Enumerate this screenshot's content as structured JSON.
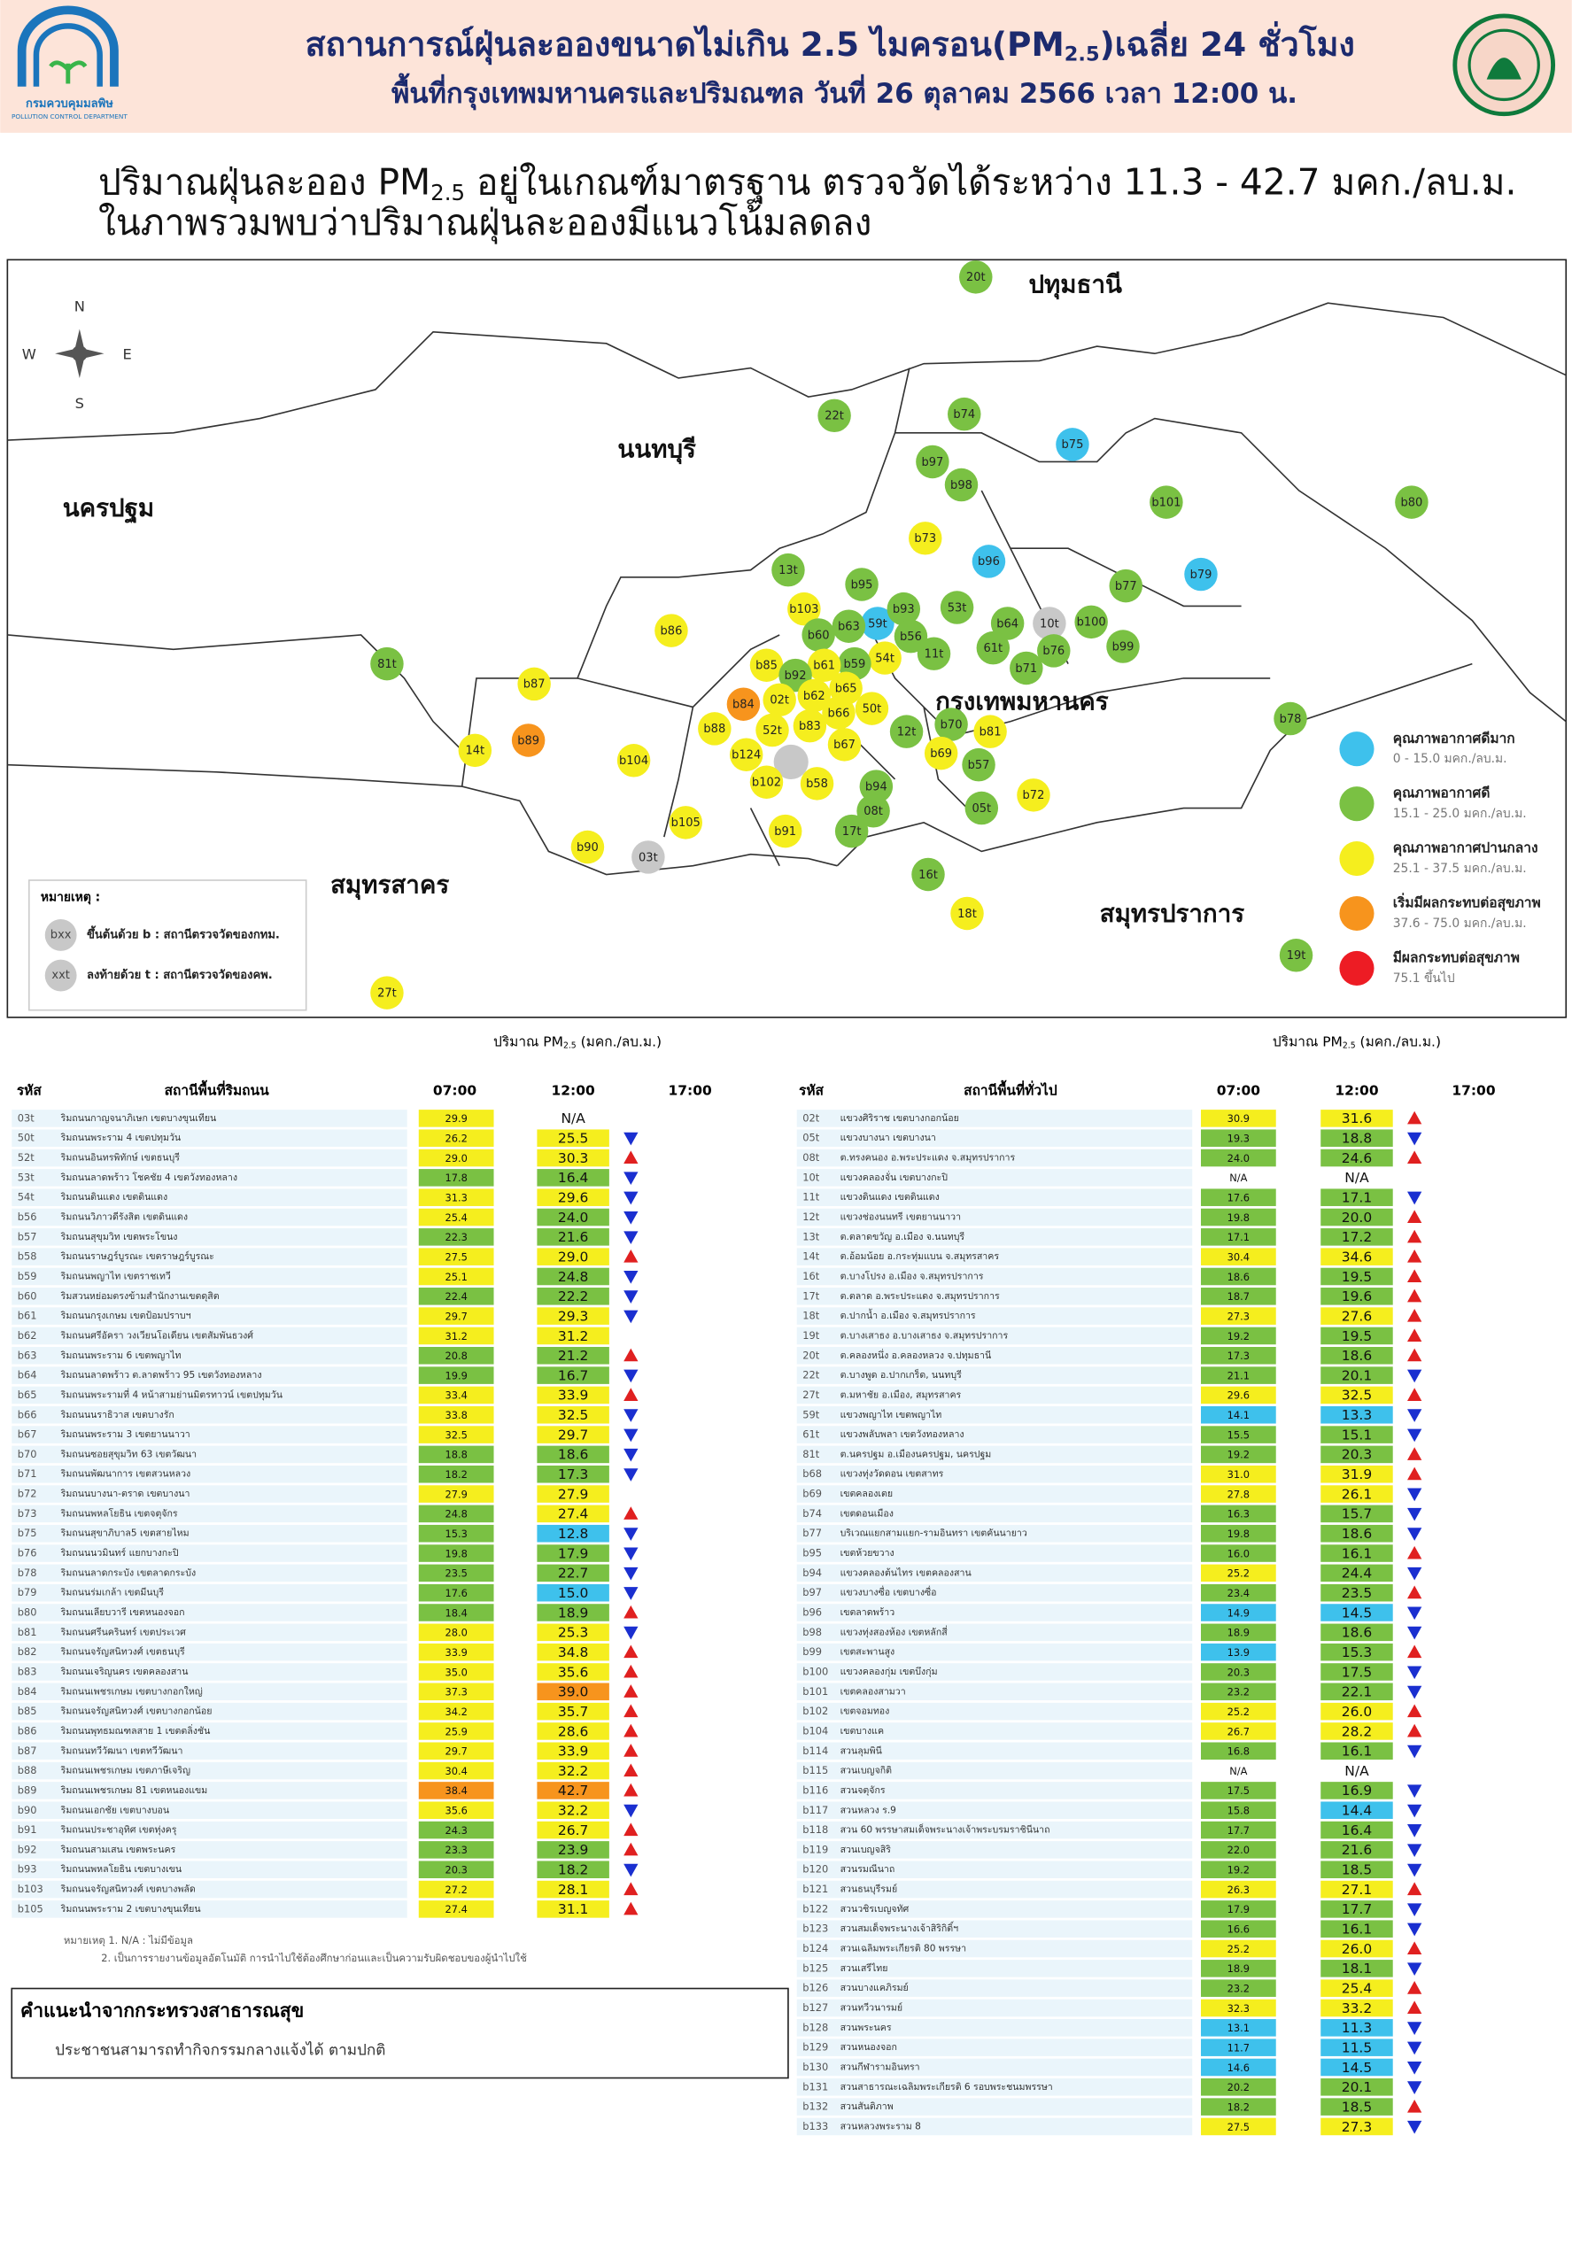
{
  "header": {
    "title_pre": "สถานการณ์ฝุ่นละอองขนาดไม่เกิน 2.5 ไมครอน(PM",
    "title_sub": "2.5",
    "title_post": ")เฉลี่ย 24 ชั่วโมง",
    "subtitle": "พื้นที่กรุงเทพมหานครและปริมณฑล วันที่ 26 ตุลาคม 2566 เวลา 12:00 น.",
    "logo_name": "กรมควบคุมมลพิษ",
    "logo_name_en": "POLLUTION CONTROL DEPARTMENT"
  },
  "summary": {
    "line1_pre": "ปริมาณฝุ่นละออง PM",
    "line1_sub": "2.5",
    "line1_post": " อยู่ในเกณฑ์มาตรฐาน ตรวจวัดได้ระหว่าง 11.3 - 42.7 มคก./ลบ.ม.",
    "line2": "ในภาพรวมพบว่าปริมาณฝุ่นละอองมีแนวโน้มลดลง"
  },
  "map": {
    "compass": {
      "n": "N",
      "s": "S",
      "e": "E",
      "w": "W"
    },
    "regions": [
      "ปทุมธานี",
      "นนทบุรี",
      "นครปฐม",
      "กรุงเทพมหานคร",
      "สมุทรสาคร",
      "สมุทรปราการ"
    ],
    "stations": [
      {
        "label": "20t",
        "color": "#7ac143"
      },
      {
        "label": "22t",
        "color": "#7ac143"
      },
      {
        "label": "b74",
        "color": "#7ac143"
      },
      {
        "label": "b75",
        "color": "#3ec1ec"
      },
      {
        "label": "b97",
        "color": "#7ac143"
      },
      {
        "label": "b98",
        "color": "#7ac143"
      },
      {
        "label": "b101",
        "color": "#7ac143"
      },
      {
        "label": "b80",
        "color": "#7ac143"
      },
      {
        "label": "b73",
        "color": "#f5ee1e"
      },
      {
        "label": "b96",
        "color": "#3ec1ec"
      },
      {
        "label": "b79",
        "color": "#3ec1ec"
      },
      {
        "label": "13t",
        "color": "#7ac143"
      },
      {
        "label": "b95",
        "color": "#7ac143"
      },
      {
        "label": "b77",
        "color": "#7ac143"
      },
      {
        "label": "b103",
        "color": "#f5ee1e"
      },
      {
        "label": "59t",
        "color": "#3ec1ec"
      },
      {
        "label": "b63",
        "color": "#7ac143"
      },
      {
        "label": "b93",
        "color": "#7ac143"
      },
      {
        "label": "53t",
        "color": "#7ac143"
      },
      {
        "label": "10t",
        "color": "#c8c8c8"
      },
      {
        "label": "b100",
        "color": "#7ac143"
      },
      {
        "label": "b64",
        "color": "#7ac143"
      },
      {
        "label": "b60",
        "color": "#7ac143"
      },
      {
        "label": "b56",
        "color": "#7ac143"
      },
      {
        "label": "61t",
        "color": "#7ac143"
      },
      {
        "label": "b76",
        "color": "#7ac143"
      },
      {
        "label": "b99",
        "color": "#7ac143"
      },
      {
        "label": "b86",
        "color": "#f5ee1e"
      },
      {
        "label": "81t",
        "color": "#7ac143"
      },
      {
        "label": "11t",
        "color": "#7ac143"
      },
      {
        "label": "54t",
        "color": "#f5ee1e"
      },
      {
        "label": "b59",
        "color": "#7ac143"
      },
      {
        "label": "b61",
        "color": "#f5ee1e"
      },
      {
        "label": "b71",
        "color": "#7ac143"
      },
      {
        "label": "b85",
        "color": "#f5ee1e"
      },
      {
        "label": "b92",
        "color": "#7ac143"
      },
      {
        "label": "b87",
        "color": "#f5ee1e"
      },
      {
        "label": "b62",
        "color": "#f5ee1e"
      },
      {
        "label": "b65",
        "color": "#f5ee1e"
      },
      {
        "label": "02t",
        "color": "#f5ee1e"
      },
      {
        "label": "b84",
        "color": "#f7941d"
      },
      {
        "label": "50t",
        "color": "#f5ee1e"
      },
      {
        "label": "b66",
        "color": "#f5ee1e"
      },
      {
        "label": "b78",
        "color": "#7ac143"
      },
      {
        "label": "b88",
        "color": "#f5ee1e"
      },
      {
        "label": "52t",
        "color": "#f5ee1e"
      },
      {
        "label": "b83",
        "color": "#f5ee1e"
      },
      {
        "label": "b70",
        "color": "#7ac143"
      },
      {
        "label": "b81",
        "color": "#f5ee1e"
      },
      {
        "label": "12t",
        "color": "#7ac143"
      },
      {
        "label": "b67",
        "color": "#f5ee1e"
      },
      {
        "label": "b124",
        "color": "#f5ee1e"
      },
      {
        "label": "14t",
        "color": "#f5ee1e"
      },
      {
        "label": "b89",
        "color": "#f7941d"
      },
      {
        "label": "b69",
        "color": "#f5ee1e"
      },
      {
        "label": "b57",
        "color": "#7ac143"
      },
      {
        "label": "b104",
        "color": "#f5ee1e"
      },
      {
        "label": "b102",
        "color": "#f5ee1e"
      },
      {
        "label": "b58",
        "color": "#f5ee1e"
      },
      {
        "label": "b94",
        "color": "#7ac143"
      },
      {
        "label": "b72",
        "color": "#f5ee1e"
      },
      {
        "label": "08t",
        "color": "#7ac143"
      },
      {
        "label": "05t",
        "color": "#7ac143"
      },
      {
        "label": "b105",
        "color": "#f5ee1e"
      },
      {
        "label": "b91",
        "color": "#f5ee1e"
      },
      {
        "label": "17t",
        "color": "#7ac143"
      },
      {
        "label": "b90",
        "color": "#f5ee1e"
      },
      {
        "label": "03t",
        "color": "#c8c8c8"
      },
      {
        "label": "16t",
        "color": "#7ac143"
      },
      {
        "label": "18t",
        "color": "#f5ee1e"
      },
      {
        "label": "19t",
        "color": "#7ac143"
      },
      {
        "label": "27t",
        "color": "#f5ee1e"
      }
    ],
    "legend": [
      {
        "label": "คุณภาพอากาศดีมาก",
        "range": "0 - 15.0 มคก./ลบ.ม.",
        "color": "#3ec1ec"
      },
      {
        "label": "คุณภาพอากาศดี",
        "range": "15.1 - 25.0 มคก./ลบ.ม.",
        "color": "#7ac143"
      },
      {
        "label": "คุณภาพอากาศปานกลาง",
        "range": "25.1 - 37.5 มคก./ลบ.ม.",
        "color": "#f5ee1e"
      },
      {
        "label": "เริ่มมีผลกระทบต่อสุขภาพ",
        "range": "37.6 - 75.0 มคก./ลบ.ม.",
        "color": "#f7941d"
      },
      {
        "label": "มีผลกระทบต่อสุขภาพ",
        "range": "75.1 ขึ้นไป",
        "color": "#ed1c24"
      }
    ],
    "note": {
      "title": "หมายเหตุ :",
      "items": [
        {
          "symbol": "bxx",
          "text": "ขึ้นต้นด้วย b : สถานีตรวจวัดของกทม."
        },
        {
          "symbol": "xxt",
          "text": "ลงท้ายด้วย t : สถานีตรวจวัดของคพ."
        }
      ]
    }
  },
  "tables": [
    {
      "heading_pre": "ปริมาณ PM",
      "heading_sub": "2.5",
      "heading_post": " (มคก./ลบ.ม.)",
      "columns": [
        "รหัส",
        "สถานีพื้นที่ริมถนน",
        "07:00",
        "12:00",
        "17:00"
      ],
      "rows": [
        [
          "03t",
          "ริมถนนกาญจนาภิเษก เขตบางขุนเทียน",
          "29.9",
          "N/A"
        ],
        [
          "50t",
          "ริมถนนพระราม 4 เขตปทุมวัน",
          "26.2",
          "25.5"
        ],
        [
          "52t",
          "ริมถนนอินทรพิทักษ์ เขตธนบุรี",
          "29.0",
          "30.3"
        ],
        [
          "53t",
          "ริมถนนลาดพร้าว โชคชัย 4 เขตวังทองหลาง",
          "17.8",
          "16.4"
        ],
        [
          "54t",
          "ริมถนนดินแดง เขตดินแดง",
          "31.3",
          "29.6"
        ],
        [
          "b56",
          "ริมถนนวิภาวดีรังสิต เขตดินแดง",
          "25.4",
          "24.0"
        ],
        [
          "b57",
          "ริมถนนสุขุมวิท เขตพระโขนง",
          "22.3",
          "21.6"
        ],
        [
          "b58",
          "ริมถนนราษฎร์บูรณะ เขตราษฎร์บูรณะ",
          "27.5",
          "29.0"
        ],
        [
          "b59",
          "ริมถนนพญาไท เขตราชเทวี",
          "25.1",
          "24.8"
        ],
        [
          "b60",
          "ริมสวนหย่อมตรงข้ามสำนักงานเขตดุสิต",
          "22.4",
          "22.2"
        ],
        [
          "b61",
          "ริมถนนกรุงเกษม เขตป้อมปราบฯ",
          "29.7",
          "29.3"
        ],
        [
          "b62",
          "ริมถนนศรีอัครา วงเวียนโอเดียน เขตสัมพันธวงศ์",
          "31.2",
          "31.2"
        ],
        [
          "b63",
          "ริมถนนพระราม 6 เขตพญาไท",
          "20.8",
          "21.2"
        ],
        [
          "b64",
          "ริมถนนลาดพร้าว ต.ลาดพร้าว 95 เขตวังทองหลาง",
          "19.9",
          "16.7"
        ],
        [
          "b65",
          "ริมถนนพระรามที่ 4 หน้าสามย่านมิตรทาวน์ เขตปทุมวัน",
          "33.4",
          "33.9"
        ],
        [
          "b66",
          "ริมถนนนราธิวาส เขตบางรัก",
          "33.8",
          "32.5"
        ],
        [
          "b67",
          "ริมถนนพระราม 3 เขตยานนาวา",
          "32.5",
          "29.7"
        ],
        [
          "b70",
          "ริมถนนซอยสุขุมวิท 63 เขตวัฒนา",
          "18.8",
          "18.6"
        ],
        [
          "b71",
          "ริมถนนพัฒนาการ เขตสวนหลวง",
          "18.2",
          "17.3"
        ],
        [
          "b72",
          "ริมถนนบางนา-ตราด เขตบางนา",
          "27.9",
          "27.9"
        ],
        [
          "b73",
          "ริมถนนพหลโยธิน เขตจตุจักร",
          "24.8",
          "27.4"
        ],
        [
          "b75",
          "ริมถนนสุขาภิบาล5 เขตสายไหม",
          "15.3",
          "12.8"
        ],
        [
          "b76",
          "ริมถนนนวมินทร์ แยกบางกะปิ",
          "19.8",
          "17.9"
        ],
        [
          "b78",
          "ริมถนนลาดกระบัง เขตลาดกระบัง",
          "23.5",
          "22.7"
        ],
        [
          "b79",
          "ริมถนนร่มเกล้า เขตมีนบุรี",
          "17.6",
          "15.0"
        ],
        [
          "b80",
          "ริมถนนเลียบวารี เขตหนองจอก",
          "18.4",
          "18.9"
        ],
        [
          "b81",
          "ริมถนนศรีนครินทร์ เขตประเวศ",
          "28.0",
          "25.3"
        ],
        [
          "b82",
          "ริมถนนจรัญสนิทวงศ์ เขตธนบุรี",
          "33.9",
          "34.8"
        ],
        [
          "b83",
          "ริมถนนเจริญนคร เขตคลองสาน",
          "35.0",
          "35.6"
        ],
        [
          "b84",
          "ริมถนนเพชรเกษม เขตบางกอกใหญ่",
          "37.3",
          "39.0"
        ],
        [
          "b85",
          "ริมถนนจรัญสนิทวงศ์ เขตบางกอกน้อย",
          "34.2",
          "35.7"
        ],
        [
          "b86",
          "ริมถนนพุทธมณฑลสาย 1 เขตตลิ่งชัน",
          "25.9",
          "28.6"
        ],
        [
          "b87",
          "ริมถนนทวีวัฒนา เขตทวีวัฒนา",
          "29.7",
          "33.9"
        ],
        [
          "b88",
          "ริมถนนเพชรเกษม เขตภาษีเจริญ",
          "30.4",
          "32.2"
        ],
        [
          "b89",
          "ริมถนนเพชรเกษม 81 เขตหนองแขม",
          "38.4",
          "42.7"
        ],
        [
          "b90",
          "ริมถนนเอกชัย เขตบางบอน",
          "35.6",
          "32.2"
        ],
        [
          "b91",
          "ริมถนนประชาอุทิศ เขตทุ่งครุ",
          "24.3",
          "26.7"
        ],
        [
          "b92",
          "ริมถนนสามเสน เขตพระนคร",
          "23.3",
          "23.9"
        ],
        [
          "b93",
          "ริมถนนพหลโยธิน เขตบางเขน",
          "20.3",
          "18.2"
        ],
        [
          "b103",
          "ริมถนนจรัญสนิทวงศ์ เขตบางพลัด",
          "27.2",
          "28.1"
        ],
        [
          "b105",
          "ริมถนนพระราม 2 เขตบางขุนเทียน",
          "27.4",
          "31.1"
        ]
      ]
    },
    {
      "heading_pre": "ปริมาณ PM",
      "heading_sub": "2.5",
      "heading_post": " (มคก./ลบ.ม.)",
      "columns": [
        "รหัส",
        "สถานีพื้นที่ทั่วไป",
        "07:00",
        "12:00",
        "17:00"
      ],
      "rows": [
        [
          "02t",
          "แขวงศิริราช เขตบางกอกน้อย",
          "30.9",
          "31.6"
        ],
        [
          "05t",
          "แขวงบางนา เขตบางนา",
          "19.3",
          "18.8"
        ],
        [
          "08t",
          "ต.ทรงคนอง อ.พระประแดง จ.สมุทรปราการ",
          "24.0",
          "24.6"
        ],
        [
          "10t",
          "แขวงคลองจั่น เขตบางกะปิ",
          "N/A",
          "N/A"
        ],
        [
          "11t",
          "แขวงดินแดง เขตดินแดง",
          "17.6",
          "17.1"
        ],
        [
          "12t",
          "แขวงช่องนนทรี เขตยานนาวา",
          "19.8",
          "20.0"
        ],
        [
          "13t",
          "ต.ตลาดขวัญ อ.เมือง จ.นนทบุรี",
          "17.1",
          "17.2"
        ],
        [
          "14t",
          "ต.อ้อมน้อย อ.กระทุ่มแบน จ.สมุทรสาคร",
          "30.4",
          "34.6"
        ],
        [
          "16t",
          "ต.บางโปรง อ.เมือง จ.สมุทรปราการ",
          "18.6",
          "19.5"
        ],
        [
          "17t",
          "ต.ตลาด อ.พระประแดง จ.สมุทรปราการ",
          "18.7",
          "19.6"
        ],
        [
          "18t",
          "ต.ปากน้ำ อ.เมือง จ.สมุทรปราการ",
          "27.3",
          "27.6"
        ],
        [
          "19t",
          "ต.บางเสาธง อ.บางเสาธง จ.สมุทรปราการ",
          "19.2",
          "19.5"
        ],
        [
          "20t",
          "ต.คลองหนึ่ง อ.คลองหลวง จ.ปทุมธานี",
          "17.3",
          "18.6"
        ],
        [
          "22t",
          "ต.บางพูด อ.ปากเกร็ด, นนทบุรี",
          "21.1",
          "20.1"
        ],
        [
          "27t",
          "ต.มหาชัย อ.เมือง, สมุทรสาคร",
          "29.6",
          "32.5"
        ],
        [
          "59t",
          "แขวงพญาไท เขตพญาไท",
          "14.1",
          "13.3"
        ],
        [
          "61t",
          "แขวงพลับพลา เขตวังทองหลาง",
          "15.5",
          "15.1"
        ],
        [
          "81t",
          "ต.นครปฐม อ.เมืองนครปฐม, นครปฐม",
          "19.2",
          "20.3"
        ],
        [
          "b68",
          "แขวงทุ่งวัดดอน เขตสาทร",
          "31.0",
          "31.9"
        ],
        [
          "b69",
          "เขตคลองเตย",
          "27.8",
          "26.1"
        ],
        [
          "b74",
          "เขตดอนเมือง",
          "16.3",
          "15.7"
        ],
        [
          "b77",
          "บริเวณแยกสามแยก-รามอินทรา เขตคันนายาว",
          "19.8",
          "18.6"
        ],
        [
          "b95",
          "เขตห้วยขวาง",
          "16.0",
          "16.1"
        ],
        [
          "b94",
          "แขวงคลองต้นไทร เขตคลองสาน",
          "25.2",
          "24.4"
        ],
        [
          "b97",
          "แขวงบางซื่อ เขตบางซื่อ",
          "23.4",
          "23.5"
        ],
        [
          "b96",
          "เขตลาดพร้าว",
          "14.9",
          "14.5"
        ],
        [
          "b98",
          "แขวงทุ่งสองห้อง เขตหลักสี่",
          "18.9",
          "18.6"
        ],
        [
          "b99",
          "เขตสะพานสูง",
          "13.9",
          "15.3"
        ],
        [
          "b100",
          "แขวงคลองกุ่ม เขตบึงกุ่ม",
          "20.3",
          "17.5"
        ],
        [
          "b101",
          "เขตคลองสามวา",
          "23.2",
          "22.1"
        ],
        [
          "b102",
          "เขตจอมทอง",
          "25.2",
          "26.0"
        ],
        [
          "b104",
          "เขตบางแค",
          "26.7",
          "28.2"
        ],
        [
          "b114",
          "สวนลุมพินี",
          "16.8",
          "16.1"
        ],
        [
          "b115",
          "สวนเบญจกิติ",
          "N/A",
          "N/A"
        ],
        [
          "b116",
          "สวนจตุจักร",
          "17.5",
          "16.9"
        ],
        [
          "b117",
          "สวนหลวง ร.9",
          "15.8",
          "14.4"
        ],
        [
          "b118",
          "สวน 60 พรรษาสมเด็จพระนางเจ้าพระบรมราชินีนาถ",
          "17.7",
          "16.4"
        ],
        [
          "b119",
          "สวนเบญจสิริ",
          "22.0",
          "21.6"
        ],
        [
          "b120",
          "สวนรมณีนาถ",
          "19.2",
          "18.5"
        ],
        [
          "b121",
          "สวนธนบุรีรมย์",
          "26.3",
          "27.1"
        ],
        [
          "b122",
          "สวนวชิรเบญจทัศ",
          "17.9",
          "17.7"
        ],
        [
          "b123",
          "สวนสมเด็จพระนางเจ้าสิริกิติ์ฯ",
          "16.6",
          "16.1"
        ],
        [
          "b124",
          "สวนเฉลิมพระเกียรติ 80 พรรษา",
          "25.2",
          "26.0"
        ],
        [
          "b125",
          "สวนเสรีไทย",
          "18.9",
          "18.1"
        ],
        [
          "b126",
          "สวนบางแคภิรมย์",
          "23.2",
          "25.4"
        ],
        [
          "b127",
          "สวนทวีวนารมย์",
          "32.3",
          "33.2"
        ],
        [
          "b128",
          "สวนพระนคร",
          "13.1",
          "11.3"
        ],
        [
          "b129",
          "สวนหนองจอก",
          "11.7",
          "11.5"
        ],
        [
          "b130",
          "สวนกีฬารามอินทรา",
          "14.6",
          "14.5"
        ],
        [
          "b131",
          "สวนสาธารณะเฉลิมพระเกียรติ 6 รอบพระชนมพรรษา",
          "20.2",
          "20.1"
        ],
        [
          "b132",
          "สวนสันติภาพ",
          "18.2",
          "18.5"
        ],
        [
          "b133",
          "สวนหลวงพระราม 8",
          "27.5",
          "27.3"
        ]
      ]
    }
  ],
  "footnotes": [
    "หมายเหตุ 1. N/A : ไม่มีข้อมูล",
    "2. เป็นการรายงานข้อมูลอัตโนมัติ การนำไปใช้ต้องศึกษาก่อนและเป็นความรับผิดชอบของผู้นำไปใช้"
  ],
  "advice": {
    "title": "คำแนะนำจากกระทรวงสาธารณสุข",
    "text": "ประชาชนสามารถทำกิจกรรมกลางแจ้งได้ ตามปกติ"
  }
}
